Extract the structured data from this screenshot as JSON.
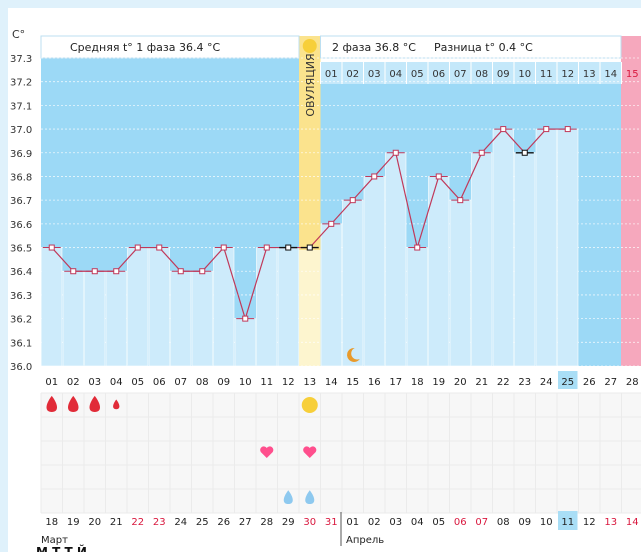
{
  "chart_data": {
    "type": "line",
    "title": "",
    "y_axis_label": "C°",
    "ylim": [
      36.0,
      37.3
    ],
    "y_ticks": [
      "37.3",
      "37.2",
      "37.1",
      "37.0",
      "36.9",
      "36.8",
      "36.7",
      "36.6",
      "36.5",
      "36.4",
      "36.3",
      "36.2",
      "36.1",
      "36.0"
    ],
    "phase1_label": "Средняя t° 1 фаза 36.4 °C",
    "phase2_label": "2 фаза 36.8 °C",
    "difference_label": "Разница t° 0.4 °C",
    "ovulation_label": "ОВУЛЯЦИЯ",
    "cycle_days": [
      "01",
      "02",
      "03",
      "04",
      "05",
      "06",
      "07",
      "08",
      "09",
      "10",
      "11",
      "12",
      "13",
      "14",
      "15",
      "16",
      "17",
      "18",
      "19",
      "20",
      "21",
      "22",
      "23",
      "24",
      "25",
      "26",
      "27",
      "28"
    ],
    "highlighted_cycle_day": "25",
    "phase2_days": [
      "01",
      "02",
      "03",
      "04",
      "05",
      "06",
      "07",
      "08",
      "09",
      "10",
      "11",
      "12",
      "13",
      "14",
      "15"
    ],
    "temperatures": [
      36.5,
      36.4,
      36.4,
      36.4,
      36.5,
      36.5,
      36.4,
      36.4,
      36.5,
      36.2,
      36.5,
      36.5,
      36.5,
      36.6,
      36.7,
      36.8,
      36.9,
      36.5,
      36.8,
      36.7,
      36.9,
      37.0,
      36.9,
      37.0,
      37.0,
      null,
      null,
      null
    ],
    "calendar_dates": [
      "18",
      "19",
      "20",
      "21",
      "22",
      "23",
      "24",
      "25",
      "26",
      "27",
      "28",
      "29",
      "30",
      "31",
      "01",
      "02",
      "03",
      "04",
      "05",
      "06",
      "07",
      "08",
      "09",
      "10",
      "11",
      "12",
      "13",
      "14"
    ],
    "weekend_dates_idx": [
      4,
      5,
      12,
      13,
      19,
      20,
      26,
      27
    ],
    "highlighted_date": "11",
    "month_labels": {
      "march": "Март",
      "april": "Апрель"
    },
    "legend_fragment": "М                    Т                    Т                    Й",
    "markers": {
      "period_days": [
        0,
        1,
        2,
        3
      ],
      "sun_day": 12,
      "moon_day": 14,
      "heart_days": [
        10,
        12
      ],
      "drop_days": [
        11,
        12
      ]
    },
    "colors": {
      "background": "#dff1fb",
      "phase1_band": "#9cd9f6",
      "ovulation_band": "#fbe38d",
      "phase2_header": "#c4e8fa",
      "bar": "#cdebfb",
      "line": "#c0395a",
      "marker_fill": "#f3b3c4",
      "period_drop": "#e12b38",
      "heart": "#ff4f8d",
      "blue_drop": "#8ec9ef",
      "pink_band": "#f6a8bd",
      "weekend": "#d9183e",
      "highlight_day": "#a9def6"
    }
  }
}
